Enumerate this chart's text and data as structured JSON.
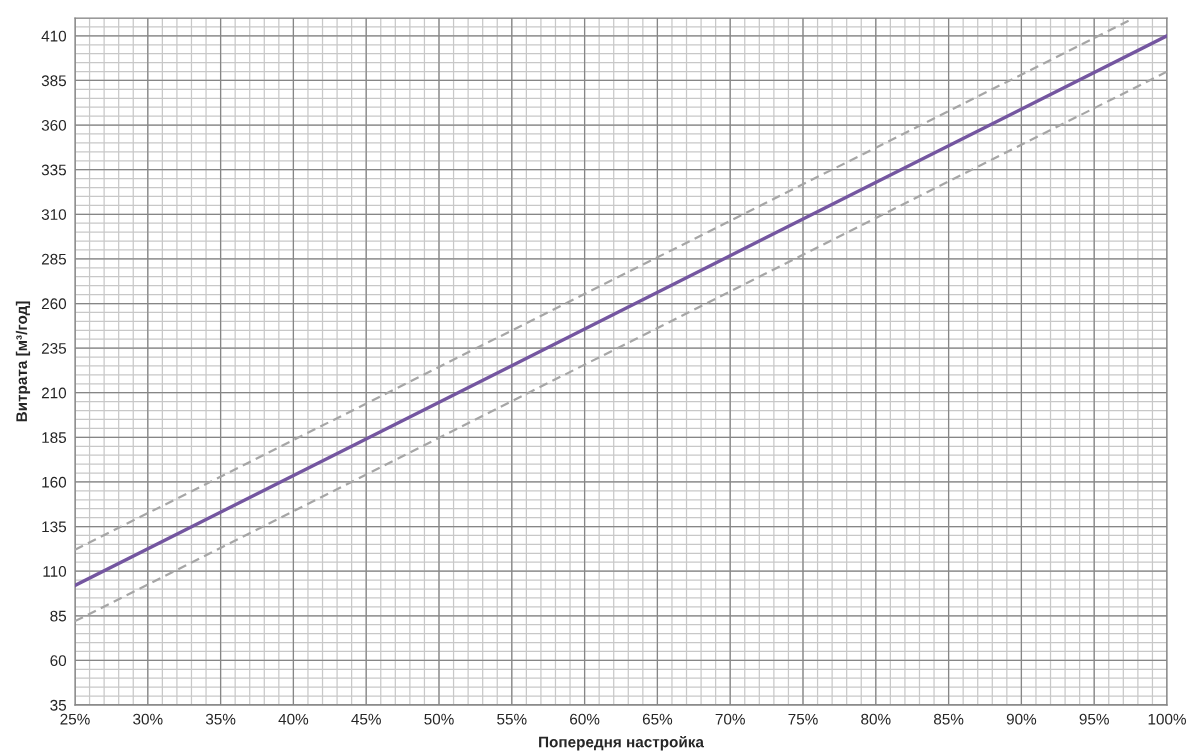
{
  "chart_data": {
    "type": "line",
    "xlabel": "Попередня настройка",
    "ylabel": "Витрата [м³/год]",
    "series": [
      {
        "x": [
          25,
          100
        ],
        "values": [
          102,
          410
        ],
        "color": "#7456a0",
        "line_style": "solid"
      },
      {
        "x": [
          25,
          97.5
        ],
        "values": [
          122,
          419
        ],
        "color": "#a6a6a6",
        "line_style": "dashed"
      },
      {
        "x": [
          25,
          100
        ],
        "values": [
          82,
          390
        ],
        "color": "#a6a6a6",
        "line_style": "dashed"
      }
    ],
    "xlim": [
      25,
      100
    ],
    "ylim": [
      35,
      420
    ],
    "xticks": [
      {
        "value": 25,
        "label": "25%"
      },
      {
        "value": 30,
        "label": "30%"
      },
      {
        "value": 35,
        "label": "35%"
      },
      {
        "value": 40,
        "label": "40%"
      },
      {
        "value": 45,
        "label": "45%"
      },
      {
        "value": 50,
        "label": "50%"
      },
      {
        "value": 55,
        "label": "55%"
      },
      {
        "value": 60,
        "label": "60%"
      },
      {
        "value": 65,
        "label": "65%"
      },
      {
        "value": 70,
        "label": "70%"
      },
      {
        "value": 75,
        "label": "75%"
      },
      {
        "value": 80,
        "label": "80%"
      },
      {
        "value": 85,
        "label": "85%"
      },
      {
        "value": 90,
        "label": "90%"
      },
      {
        "value": 95,
        "label": "95%"
      },
      {
        "value": 100,
        "label": "100%"
      }
    ],
    "yticks": [
      35,
      60,
      85,
      110,
      135,
      160,
      185,
      210,
      235,
      260,
      285,
      310,
      335,
      360,
      385,
      410
    ],
    "grid": true,
    "marker": "none"
  }
}
